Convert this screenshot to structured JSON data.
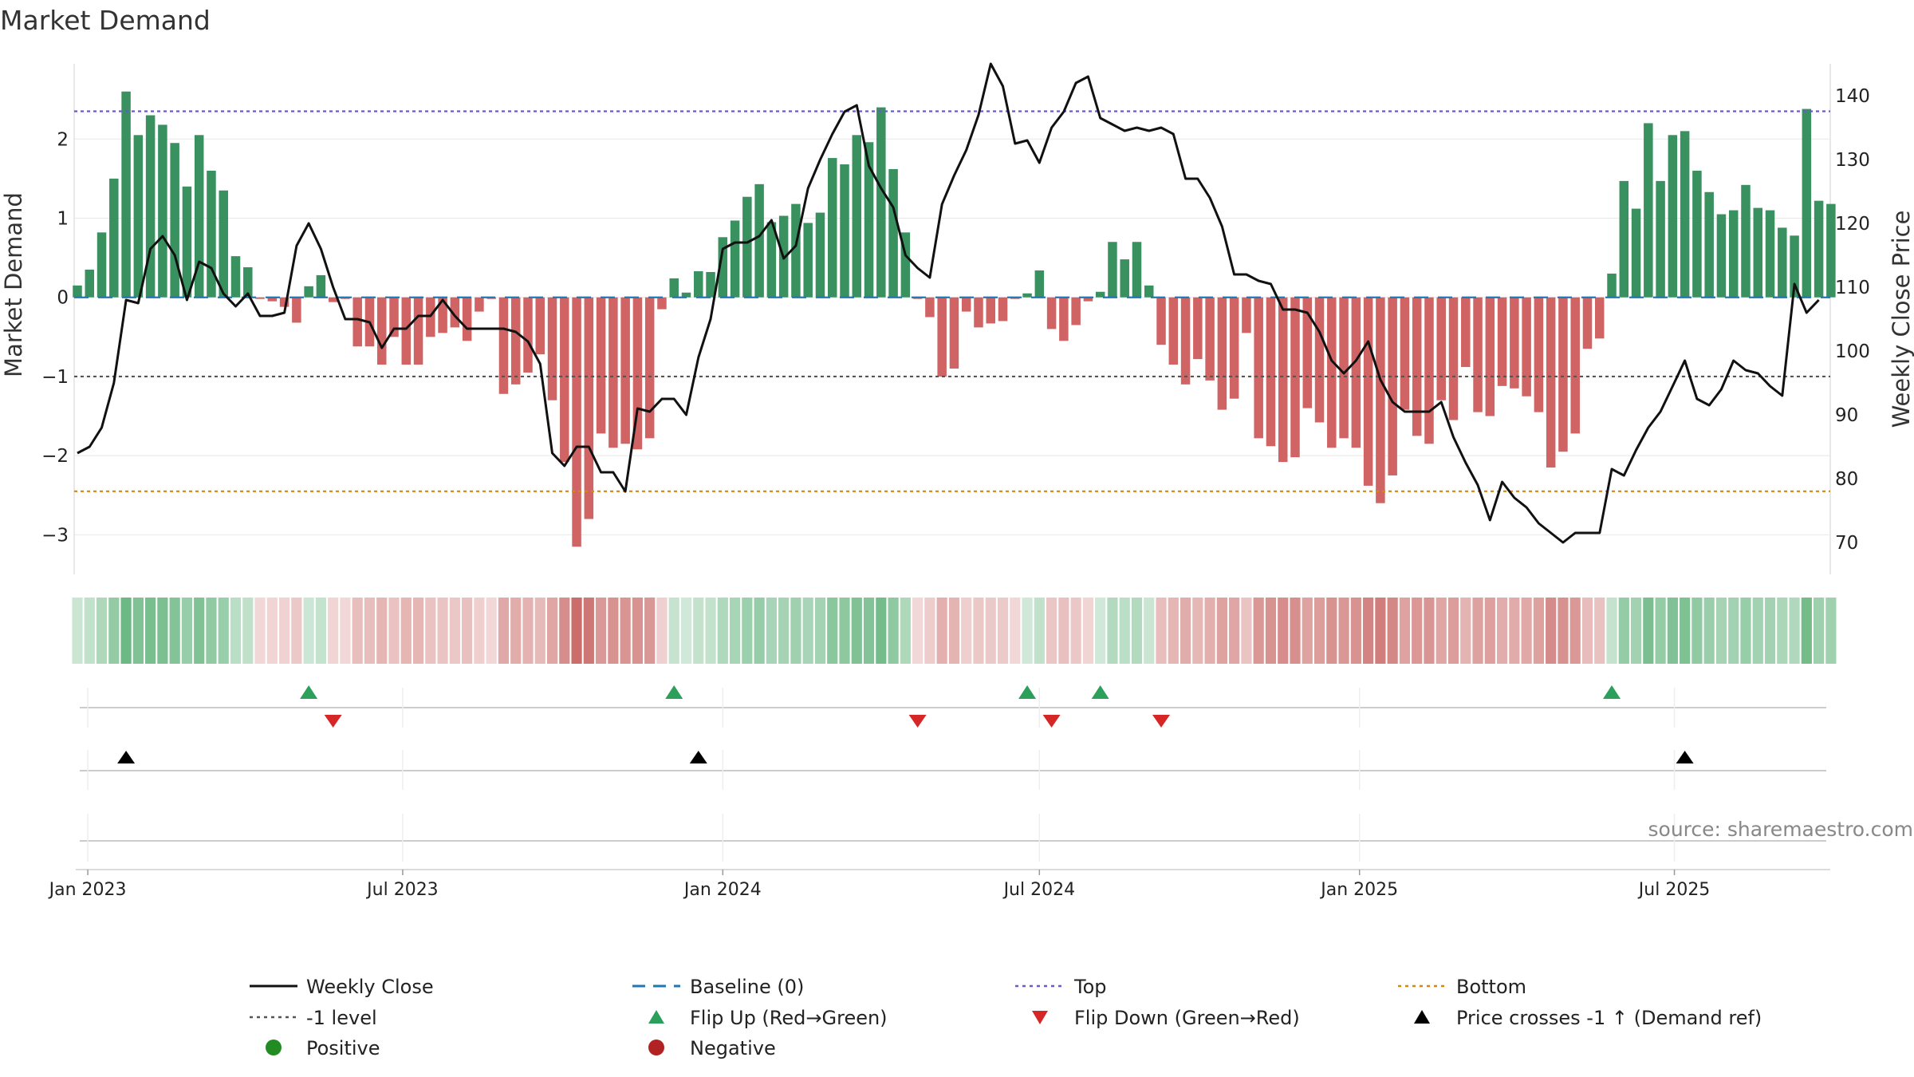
{
  "chart_data": {
    "type": "bar+line",
    "title": "Market Demand",
    "ylabel_left": "Market Demand",
    "ylabel_right": "Weekly Close Price",
    "ylim_left": [
      -3.5,
      2.95
    ],
    "ylim_right": [
      65,
      145
    ],
    "yticks_left": [
      2,
      1,
      0,
      -1,
      -2,
      -3
    ],
    "yticks_right": [
      140,
      130,
      120,
      110,
      100,
      90,
      80,
      70
    ],
    "reference_lines": {
      "top": 2.35,
      "bottom": -2.45,
      "minus_one": -1,
      "baseline": 0
    },
    "week_start": "2022-12-26",
    "x_ticks": [
      "Jan 2023",
      "Jul 2023",
      "Jan 2024",
      "Jul 2024",
      "Jan 2025",
      "Jul 2025"
    ],
    "demand": [
      0.15,
      0.35,
      0.82,
      1.5,
      2.6,
      2.05,
      2.3,
      2.18,
      1.95,
      1.4,
      2.05,
      1.6,
      1.35,
      0.52,
      0.38,
      -0.02,
      -0.05,
      -0.12,
      -0.32,
      0.14,
      0.28,
      -0.06,
      -0.02,
      -0.62,
      -0.62,
      -0.85,
      -0.5,
      -0.85,
      -0.85,
      -0.5,
      -0.45,
      -0.38,
      -0.55,
      -0.18,
      -0.02,
      -1.22,
      -1.1,
      -0.95,
      -0.72,
      -1.3,
      -2.08,
      -3.15,
      -2.8,
      -1.72,
      -1.9,
      -1.85,
      -1.92,
      -1.78,
      -0.15,
      0.24,
      0.06,
      0.33,
      0.32,
      0.76,
      0.97,
      1.27,
      1.43,
      0.95,
      1.03,
      1.18,
      0.94,
      1.07,
      1.76,
      1.68,
      2.05,
      1.96,
      2.4,
      1.62,
      0.82,
      -0.02,
      -0.25,
      -1.0,
      -0.9,
      -0.18,
      -0.38,
      -0.33,
      -0.3,
      -0.02,
      0.05,
      0.34,
      -0.4,
      -0.55,
      -0.35,
      -0.05,
      0.07,
      0.7,
      0.48,
      0.7,
      0.15,
      -0.6,
      -0.85,
      -1.1,
      -0.78,
      -1.05,
      -1.42,
      -1.28,
      -0.45,
      -1.78,
      -1.88,
      -2.08,
      -2.02,
      -1.4,
      -1.58,
      -1.9,
      -1.78,
      -1.9,
      -2.38,
      -2.6,
      -2.25,
      -1.42,
      -1.75,
      -1.85,
      -1.3,
      -1.55,
      -0.88,
      -1.45,
      -1.5,
      -1.12,
      -1.15,
      -1.25,
      -1.45,
      -2.15,
      -1.95,
      -1.72,
      -0.65,
      -0.52,
      0.3,
      1.47,
      1.12,
      2.2,
      1.47,
      2.05,
      2.1,
      1.6,
      1.33,
      1.05,
      1.1,
      1.42,
      1.13,
      1.1,
      0.88,
      0.78,
      2.38,
      1.22,
      1.18
    ],
    "close": [
      84,
      85,
      88,
      95,
      108,
      107.5,
      116,
      118,
      115,
      108,
      114,
      113,
      109,
      107,
      109,
      105.5,
      105.5,
      106,
      116.5,
      120,
      116,
      110,
      105,
      105,
      104.5,
      100.5,
      103.5,
      103.5,
      105.5,
      105.5,
      108,
      105.5,
      103.5,
      103.5,
      103.5,
      103.5,
      103,
      101.5,
      98,
      84,
      82,
      85,
      85,
      81,
      81,
      78,
      91,
      90.5,
      92.5,
      92.5,
      90,
      99,
      105,
      116,
      117,
      117,
      118,
      120.5,
      114.5,
      116.5,
      125.5,
      130,
      134,
      137.5,
      138.5,
      129,
      125.5,
      122.5,
      115,
      113,
      111.5,
      123,
      127.5,
      131.5,
      137,
      145,
      141.5,
      132.5,
      133,
      129.5,
      135,
      137.5,
      142,
      143,
      136.5,
      135.5,
      134.5,
      135,
      134.5,
      135,
      134,
      127,
      127,
      124,
      119.5,
      112,
      112,
      111,
      110.5,
      106.5,
      106.5,
      106,
      103,
      98.5,
      96.5,
      98.5,
      101.5,
      95.5,
      92,
      90.5,
      90.5,
      90.5,
      92,
      86.5,
      82.5,
      79,
      73.5,
      79.5,
      77,
      75.5,
      73,
      71.5,
      70,
      71.5,
      71.5,
      71.5,
      81.5,
      80.5,
      84.5,
      88,
      90.5,
      94.5,
      98.5,
      92.5,
      91.5,
      94,
      98.5,
      97,
      96.5,
      94.5,
      93,
      110.5,
      106,
      108
    ]
  },
  "legend": {
    "weekly_close": "Weekly Close",
    "baseline": "Baseline (0)",
    "top": "Top",
    "bottom": "Bottom",
    "minus_one": "-1 level",
    "flip_up": "Flip Up (Red→Green)",
    "flip_down": "Flip Down (Green→Red)",
    "price_cross": "Price crosses -1 ↑ (Demand ref)",
    "positive": "Positive",
    "negative": "Negative"
  },
  "source": "source: sharemaestro.com",
  "colors": {
    "positive": "#2e8b57",
    "negative": "#cd5c5c",
    "close_line": "#111111",
    "baseline": "#1f77b4",
    "top": "#6a5acd",
    "bottom": "#d4880f",
    "minus_one": "#555555",
    "flip_up": "#2ca05a",
    "flip_down": "#d62728",
    "cross": "#000000",
    "legend_positive": "#228b22",
    "legend_negative": "#b22222"
  }
}
